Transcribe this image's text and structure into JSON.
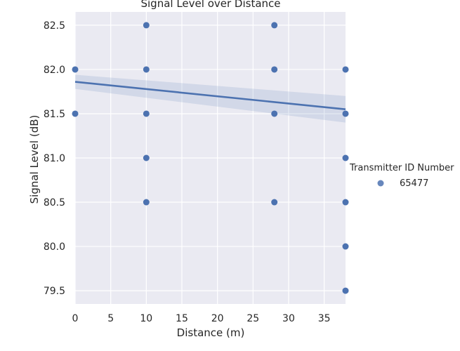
{
  "chart_data": {
    "type": "scatter",
    "title": "Signal Level over Distance",
    "xlabel": "Distance (m)",
    "ylabel": "Signal Level (dB)",
    "xlim": [
      0,
      38
    ],
    "ylim": [
      79.35,
      82.65
    ],
    "xticks": [
      0,
      5,
      10,
      15,
      20,
      25,
      30,
      35
    ],
    "yticks": [
      79.5,
      80.0,
      80.5,
      81.0,
      81.5,
      82.0,
      82.5
    ],
    "xtick_labels": [
      "0",
      "5",
      "10",
      "15",
      "20",
      "25",
      "30",
      "35"
    ],
    "ytick_labels": [
      "79.5",
      "80.0",
      "80.5",
      "81.0",
      "81.5",
      "82.0",
      "82.5"
    ],
    "grid": true,
    "legend": {
      "title": "Transmitter ID Number",
      "placement": "right",
      "entries": [
        "65477"
      ]
    },
    "series": [
      {
        "name": "65477",
        "color": "#4c72b0",
        "points": [
          [
            0,
            82.0
          ],
          [
            0,
            81.5
          ],
          [
            10,
            82.5
          ],
          [
            10,
            82.0
          ],
          [
            10,
            81.5
          ],
          [
            10,
            81.0
          ],
          [
            10,
            80.5
          ],
          [
            28,
            82.5
          ],
          [
            28,
            82.0
          ],
          [
            28,
            81.5
          ],
          [
            28,
            80.5
          ],
          [
            38,
            82.0
          ],
          [
            38,
            81.5
          ],
          [
            38,
            81.0
          ],
          [
            38,
            80.5
          ],
          [
            38,
            80.0
          ],
          [
            38,
            79.5
          ]
        ]
      }
    ],
    "regression": {
      "x": [
        0,
        38
      ],
      "y": [
        81.86,
        81.55
      ],
      "ci_lower": [
        81.78,
        81.4
      ],
      "ci_upper": [
        81.94,
        81.7
      ],
      "color": "#4c72b0"
    }
  }
}
